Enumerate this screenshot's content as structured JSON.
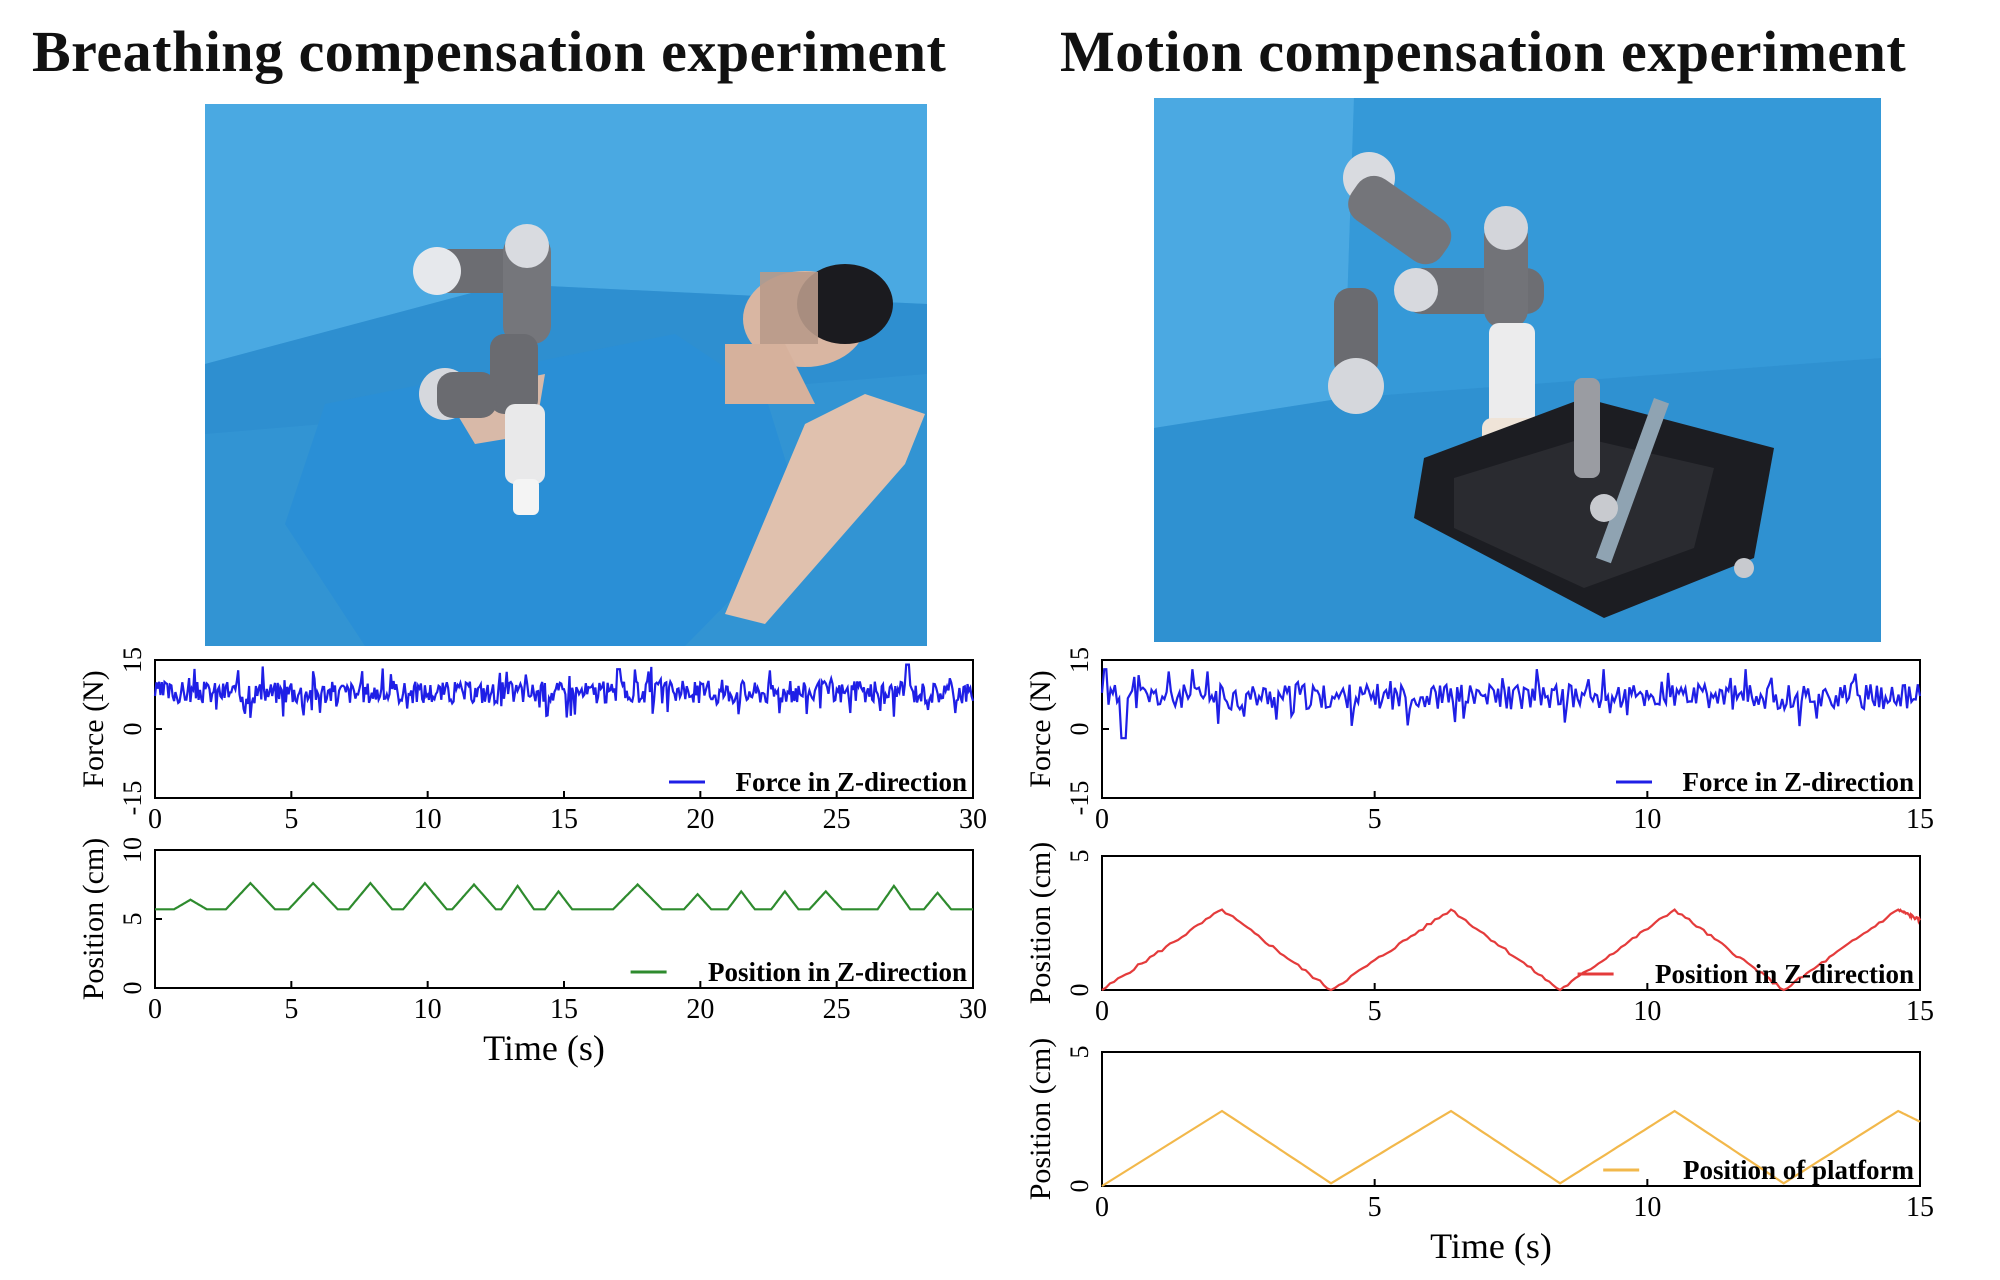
{
  "titles": {
    "left": "Breathing compensation experiment",
    "right": "Motion compensation experiment"
  },
  "photos": {
    "left_icon": "robot-arm-patient-photo",
    "right_icon": "robot-arm-platform-photo"
  },
  "colors": {
    "force": "#1f1fe6",
    "position_green": "#2e8b2e",
    "position_red": "#e43b3b",
    "position_platform": "#f2b84b",
    "drape_blue": "#3d9fdb"
  },
  "chart_data": [
    {
      "id": "left-force",
      "type": "line",
      "ylabel": "Force (N)",
      "xlim": [
        0,
        30
      ],
      "ylim": [
        -15,
        15
      ],
      "xticks": [
        "0",
        "5",
        "10",
        "15",
        "20",
        "25",
        "30"
      ],
      "yticks": [
        "15",
        "0",
        "-15"
      ],
      "legend": "Force in Z-direction",
      "legend_position": "bottom-right",
      "series": [
        {
          "name": "Force in Z-direction",
          "generator": "noise",
          "mean": 8,
          "amp": 3.5,
          "spikes": [
            [
              17,
              13
            ],
            [
              27.6,
              14
            ]
          ],
          "min": 2,
          "max": 14,
          "n": 600,
          "seed": 3
        }
      ]
    },
    {
      "id": "left-position",
      "type": "line",
      "ylabel": "Position (cm)",
      "xlabel": "Time (s)",
      "xlim": [
        0,
        30
      ],
      "ylim": [
        0,
        10
      ],
      "xticks": [
        "0",
        "5",
        "10",
        "15",
        "20",
        "25",
        "30"
      ],
      "yticks": [
        "10",
        "5",
        "0"
      ],
      "legend": "Position in Z-direction",
      "legend_position": "bottom-right",
      "series": [
        {
          "name": "Position in Z-direction",
          "generator": "bumps",
          "base": 5.7,
          "bumps": [
            [
              1.3,
              6.4,
              0.6
            ],
            [
              3.5,
              7.6,
              0.9
            ],
            [
              5.8,
              7.6,
              0.9
            ],
            [
              7.9,
              7.6,
              0.8
            ],
            [
              9.9,
              7.6,
              0.8
            ],
            [
              11.7,
              7.5,
              0.8
            ],
            [
              13.3,
              7.4,
              0.6
            ],
            [
              14.8,
              7.0,
              0.5
            ],
            [
              17.7,
              7.5,
              0.9
            ],
            [
              19.9,
              6.8,
              0.5
            ],
            [
              21.5,
              7.0,
              0.5
            ],
            [
              23.1,
              7.0,
              0.5
            ],
            [
              24.6,
              7.0,
              0.6
            ],
            [
              27.1,
              7.4,
              0.6
            ],
            [
              28.7,
              6.9,
              0.5
            ]
          ]
        }
      ]
    },
    {
      "id": "right-force",
      "type": "line",
      "ylabel": "Force (N)",
      "xlim": [
        0,
        15
      ],
      "ylim": [
        -15,
        15
      ],
      "xticks": [
        "0",
        "5",
        "10",
        "15"
      ],
      "yticks": [
        "15",
        "0",
        "-15"
      ],
      "legend": "Force in Z-direction",
      "legend_position": "bottom-right",
      "series": [
        {
          "name": "Force in Z-direction",
          "generator": "noise",
          "mean": 7,
          "amp": 4,
          "spikes": [
            [
              0.05,
              13
            ],
            [
              0.4,
              -2
            ]
          ],
          "min": -2,
          "max": 13,
          "n": 380,
          "seed": 11
        }
      ]
    },
    {
      "id": "right-position",
      "type": "line",
      "ylabel": "Position (cm)",
      "xlim": [
        0,
        15
      ],
      "ylim": [
        0,
        5
      ],
      "xticks": [
        "0",
        "5",
        "10",
        "15"
      ],
      "yticks": [
        "5",
        "0"
      ],
      "legend": "Position in Z-direction",
      "legend_position": "bottom-right",
      "series": [
        {
          "name": "Position in Z-direction",
          "generator": "triangle",
          "points": [
            [
              0,
              0
            ],
            [
              2.2,
              3
            ],
            [
              4.2,
              0
            ],
            [
              6.4,
              3
            ],
            [
              8.4,
              0
            ],
            [
              10.5,
              3
            ],
            [
              12.5,
              0
            ],
            [
              14.6,
              3
            ],
            [
              15,
              2.6
            ]
          ],
          "jitter": 0.12,
          "seed": 5
        }
      ]
    },
    {
      "id": "right-platform",
      "type": "line",
      "ylabel": "Position (cm)",
      "xlabel": "Time (s)",
      "xlim": [
        0,
        15
      ],
      "ylim": [
        0,
        5
      ],
      "xticks": [
        "0",
        "5",
        "10",
        "15"
      ],
      "yticks": [
        "5",
        "0"
      ],
      "legend": "Position of  platform",
      "legend_position": "bottom-right",
      "series": [
        {
          "name": "Position of  platform",
          "generator": "triangle",
          "points": [
            [
              0,
              0
            ],
            [
              2.2,
              2.8
            ],
            [
              4.2,
              0.1
            ],
            [
              6.4,
              2.8
            ],
            [
              8.4,
              0.1
            ],
            [
              10.5,
              2.8
            ],
            [
              12.5,
              0.1
            ],
            [
              14.6,
              2.8
            ],
            [
              15,
              2.4
            ]
          ],
          "jitter": 0,
          "seed": 1
        }
      ]
    }
  ]
}
